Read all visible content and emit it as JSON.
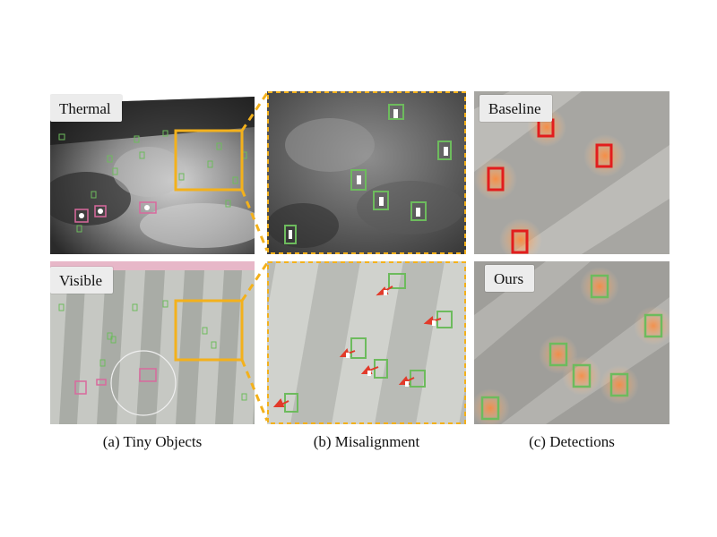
{
  "figure": {
    "labels": {
      "thermal": "Thermal",
      "visible": "Visible",
      "baseline": "Baseline",
      "ours": "Ours"
    },
    "captions": {
      "a": "(a) Tiny Objects",
      "b": "(b) Misalignment",
      "c": "(c) Detections"
    },
    "colors": {
      "highlight": "#f3b11c",
      "gt_box": "#6dbb5d",
      "miss_box": "#e21d1d",
      "arrow": "#e23a2a",
      "pink_box": "#d9699d"
    }
  }
}
